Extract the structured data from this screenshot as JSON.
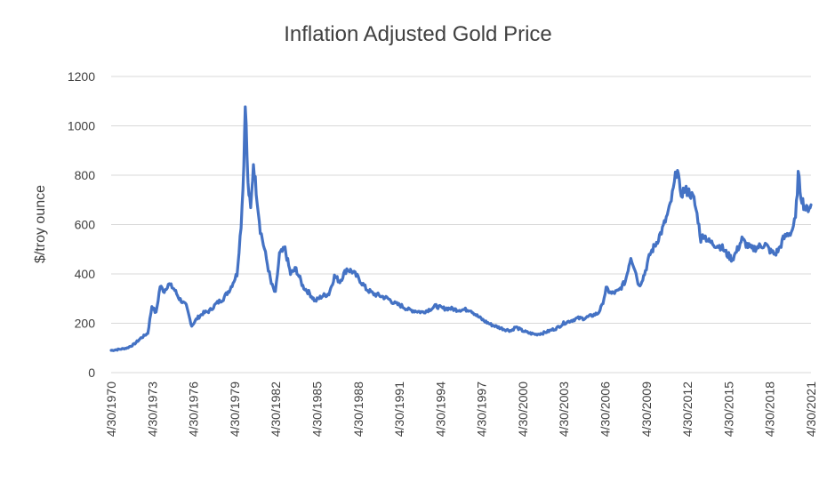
{
  "chart_data": {
    "type": "line",
    "title": "Inflation Adjusted Gold Price",
    "xlabel": "",
    "ylabel": "$/troy ounce",
    "ylim": [
      0,
      1200
    ],
    "yticks": [
      "0",
      "200",
      "400",
      "600",
      "800",
      "1000",
      "1200"
    ],
    "xlim": [
      1970.33,
      2021.33
    ],
    "xtick_labels": [
      "4/30/1970",
      "4/30/1973",
      "4/30/1976",
      "4/30/1979",
      "4/30/1982",
      "4/30/1985",
      "4/30/1988",
      "4/30/1991",
      "4/30/1994",
      "4/30/1997",
      "4/30/2000",
      "4/30/2003",
      "4/30/2006",
      "4/30/2009",
      "4/30/2012",
      "4/30/2015",
      "4/30/2018",
      "4/30/2021"
    ],
    "grid": "horizontal",
    "legend": "none",
    "line_color": "#4472c4",
    "series": [
      {
        "name": "Inflation Adjusted Gold Price",
        "x": [
          1970.33,
          1971.0,
          1971.5,
          1972.0,
          1972.5,
          1973.0,
          1973.3,
          1973.6,
          1973.9,
          1974.2,
          1974.5,
          1974.9,
          1975.3,
          1975.8,
          1976.2,
          1976.6,
          1977.0,
          1977.5,
          1978.0,
          1978.5,
          1979.0,
          1979.5,
          1979.8,
          1980.0,
          1980.1,
          1980.3,
          1980.5,
          1980.7,
          1980.9,
          1981.2,
          1981.5,
          1982.0,
          1982.3,
          1982.6,
          1983.0,
          1983.4,
          1983.8,
          1984.3,
          1984.8,
          1985.2,
          1985.7,
          1986.2,
          1986.6,
          1987.0,
          1987.5,
          1987.9,
          1988.4,
          1988.9,
          1989.4,
          1990.0,
          1990.5,
          1991.0,
          1991.5,
          1992.0,
          1992.5,
          1993.0,
          1993.5,
          1994.0,
          1994.5,
          1995.0,
          1995.5,
          1996.0,
          1996.5,
          1997.0,
          1997.5,
          1998.0,
          1998.5,
          1999.0,
          1999.5,
          1999.8,
          2000.3,
          2000.8,
          2001.3,
          2001.8,
          2002.3,
          2002.8,
          2003.3,
          2003.8,
          2004.3,
          2004.8,
          2005.3,
          2005.8,
          2006.1,
          2006.4,
          2006.8,
          2007.3,
          2007.8,
          2008.2,
          2008.5,
          2008.8,
          2009.2,
          2009.6,
          2010.0,
          2010.5,
          2011.0,
          2011.3,
          2011.6,
          2011.8,
          2012.1,
          2012.5,
          2012.8,
          2013.1,
          2013.3,
          2013.5,
          2013.9,
          2014.3,
          2014.8,
          2015.2,
          2015.6,
          2015.9,
          2016.3,
          2016.6,
          2017.0,
          2017.5,
          2018.0,
          2018.4,
          2018.7,
          2019.0,
          2019.3,
          2019.6,
          2019.9,
          2020.2,
          2020.4,
          2020.6,
          2020.8,
          2021.0,
          2021.33
        ],
        "values": [
          90,
          95,
          100,
          115,
          140,
          160,
          270,
          240,
          350,
          330,
          360,
          340,
          300,
          270,
          190,
          220,
          240,
          250,
          280,
          300,
          340,
          400,
          600,
          840,
          1110,
          760,
          660,
          850,
          740,
          580,
          500,
          360,
          320,
          480,
          500,
          400,
          420,
          350,
          320,
          290,
          310,
          320,
          390,
          370,
          420,
          410,
          380,
          340,
          320,
          310,
          300,
          280,
          270,
          255,
          250,
          245,
          255,
          270,
          260,
          260,
          255,
          255,
          255,
          230,
          210,
          195,
          185,
          175,
          170,
          185,
          170,
          160,
          155,
          160,
          170,
          180,
          200,
          210,
          220,
          220,
          230,
          240,
          270,
          340,
          320,
          330,
          370,
          470,
          420,
          350,
          400,
          480,
          520,
          580,
          660,
          740,
          840,
          720,
          740,
          730,
          700,
          620,
          540,
          560,
          530,
          520,
          510,
          480,
          460,
          490,
          540,
          520,
          500,
          510,
          520,
          490,
          480,
          500,
          540,
          560,
          570,
          620,
          800,
          720,
          680,
          660,
          680
        ]
      }
    ]
  }
}
